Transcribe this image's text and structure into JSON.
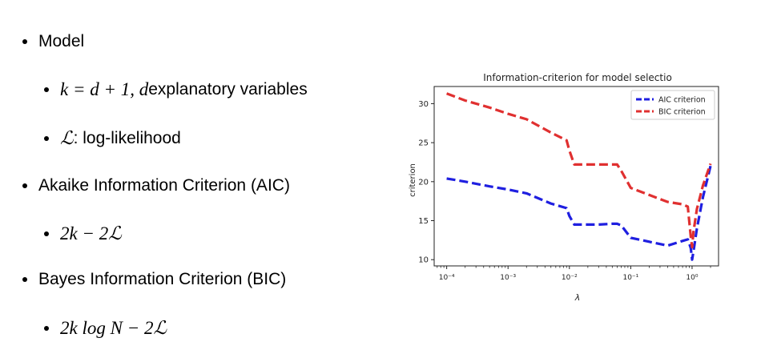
{
  "slide": {
    "bullets": [
      {
        "text": "Model"
      },
      {
        "math": "k = d + 1,  d",
        "text": " explanatory variables"
      },
      {
        "math": "ℒ",
        "text": ": log-likelihood"
      },
      {
        "text": "Akaike Information Criterion (AIC)"
      },
      {
        "math": "2k − 2ℒ"
      },
      {
        "text": "Bayes Information Criterion (BIC)"
      },
      {
        "math": "2k log N − 2ℒ"
      }
    ]
  },
  "chart_data": {
    "type": "line",
    "title": "Information-criterion for model selectio",
    "xlabel": "λ",
    "ylabel": "criterion",
    "xscale": "log",
    "xlim": [
      6.25e-05,
      2.7
    ],
    "ylim": [
      9.2,
      32.2
    ],
    "yticks": [
      10,
      15,
      20,
      25,
      30
    ],
    "xticks": [
      {
        "value": 0.0001,
        "label": "10⁻⁴"
      },
      {
        "value": 0.001,
        "label": "10⁻³"
      },
      {
        "value": 0.01,
        "label": "10⁻²"
      },
      {
        "value": 0.1,
        "label": "10⁻¹"
      },
      {
        "value": 1,
        "label": "10⁰"
      }
    ],
    "legend": "upper right",
    "grid": false,
    "series": [
      {
        "name": "AIC criterion",
        "color": "#1f1fe0",
        "x": [
          0.0001,
          0.0002,
          0.0005,
          0.001,
          0.002,
          0.005,
          0.009,
          0.01,
          0.012,
          0.02,
          0.03,
          0.05,
          0.06,
          0.07,
          0.1,
          0.2,
          0.4,
          0.7,
          0.85,
          0.95,
          1.0,
          1.05,
          1.2,
          1.5,
          2.0
        ],
        "y": [
          20.4,
          20.0,
          19.4,
          19.0,
          18.5,
          17.2,
          16.6,
          15.6,
          14.5,
          14.5,
          14.5,
          14.6,
          14.6,
          14.4,
          12.8,
          12.3,
          11.8,
          12.4,
          12.6,
          11.5,
          10.0,
          11.0,
          14.0,
          18.0,
          22.0
        ]
      },
      {
        "name": "BIC criterion",
        "color": "#e03030",
        "x": [
          0.0001,
          0.0002,
          0.0005,
          0.001,
          0.002,
          0.005,
          0.009,
          0.01,
          0.012,
          0.02,
          0.03,
          0.05,
          0.06,
          0.07,
          0.1,
          0.2,
          0.4,
          0.7,
          0.85,
          0.95,
          1.0,
          1.05,
          1.2,
          1.5,
          2.0
        ],
        "y": [
          31.3,
          30.4,
          29.5,
          28.7,
          28.0,
          26.3,
          25.3,
          24.0,
          22.2,
          22.2,
          22.2,
          22.2,
          22.2,
          21.4,
          19.2,
          18.3,
          17.4,
          17.1,
          16.8,
          13.0,
          11.6,
          13.5,
          16.5,
          19.5,
          22.3
        ]
      }
    ]
  }
}
